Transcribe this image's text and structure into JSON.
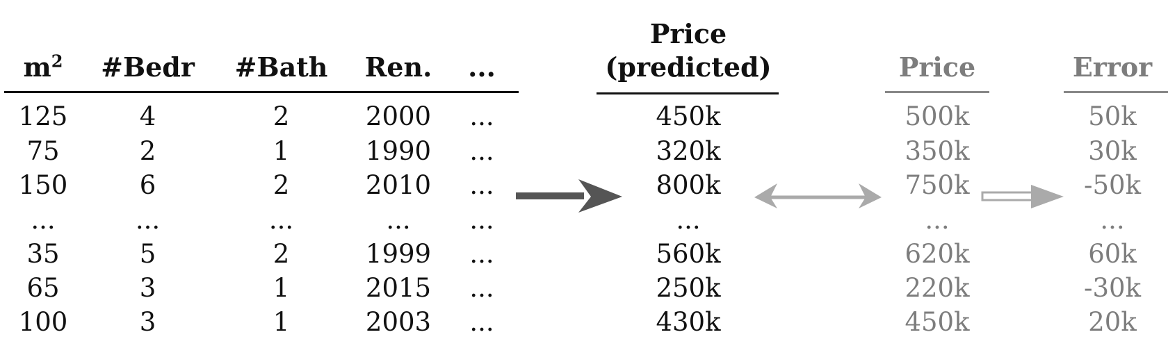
{
  "features": {
    "headers": [
      "m",
      "#Bedr",
      "#Bath",
      "Ren.",
      "..."
    ],
    "area_superscript": "2",
    "rows": [
      [
        "125",
        "4",
        "2",
        "2000",
        "..."
      ],
      [
        "75",
        "2",
        "1",
        "1990",
        "..."
      ],
      [
        "150",
        "6",
        "2",
        "2010",
        "..."
      ],
      [
        "...",
        "...",
        "...",
        "...",
        "..."
      ],
      [
        "35",
        "5",
        "2",
        "1999",
        "..."
      ],
      [
        "65",
        "3",
        "1",
        "2015",
        "..."
      ],
      [
        "100",
        "3",
        "1",
        "2003",
        "..."
      ]
    ]
  },
  "predicted": {
    "header_line1": "Price",
    "header_line2": "(predicted)",
    "values": [
      "450k",
      "320k",
      "800k",
      "...",
      "560k",
      "250k",
      "430k"
    ]
  },
  "actual": {
    "header": "Price",
    "values": [
      "500k",
      "350k",
      "750k",
      "...",
      "620k",
      "220k",
      "450k"
    ]
  },
  "error": {
    "header": "Error",
    "values": [
      "50k",
      "30k",
      "-50k",
      "...",
      "60k",
      "-30k",
      "20k"
    ]
  },
  "colors": {
    "dark_text": "#111111",
    "grey_text": "#7d7d7d",
    "dark_arrow": "#555555",
    "light_arrow": "#aaaaaa"
  }
}
